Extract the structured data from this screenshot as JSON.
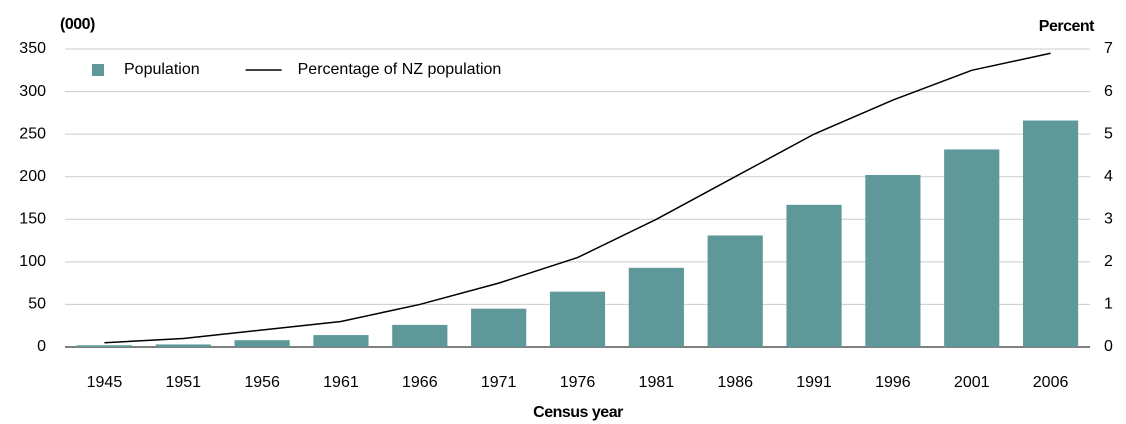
{
  "chart_data": {
    "type": "bar",
    "x_label": "Census year",
    "y_label": "(000)",
    "y2_label": "Percent",
    "categories": [
      "1945",
      "1951",
      "1956",
      "1961",
      "1966",
      "1971",
      "1976",
      "1981",
      "1986",
      "1991",
      "1996",
      "2001",
      "2006"
    ],
    "series": [
      {
        "name": "Population",
        "type": "bar",
        "color": "#5f9898",
        "values": [
          2,
          3,
          8,
          14,
          26,
          45,
          65,
          93,
          131,
          167,
          202,
          232,
          266
        ]
      },
      {
        "name": "Percentage of NZ population",
        "type": "line",
        "axis": "y2",
        "color": "#000000",
        "values": [
          0.1,
          0.2,
          0.4,
          0.6,
          1.0,
          1.5,
          2.1,
          3.0,
          4.0,
          5.0,
          5.8,
          6.5,
          6.9
        ]
      }
    ],
    "ylim": [
      0,
      350
    ],
    "yticks": [
      0,
      50,
      100,
      150,
      200,
      250,
      300,
      350
    ],
    "y2lim": [
      0,
      7
    ],
    "y2ticks": [
      0,
      1,
      2,
      3,
      4,
      5,
      6,
      7
    ],
    "grid": true,
    "legend": "top-left"
  }
}
